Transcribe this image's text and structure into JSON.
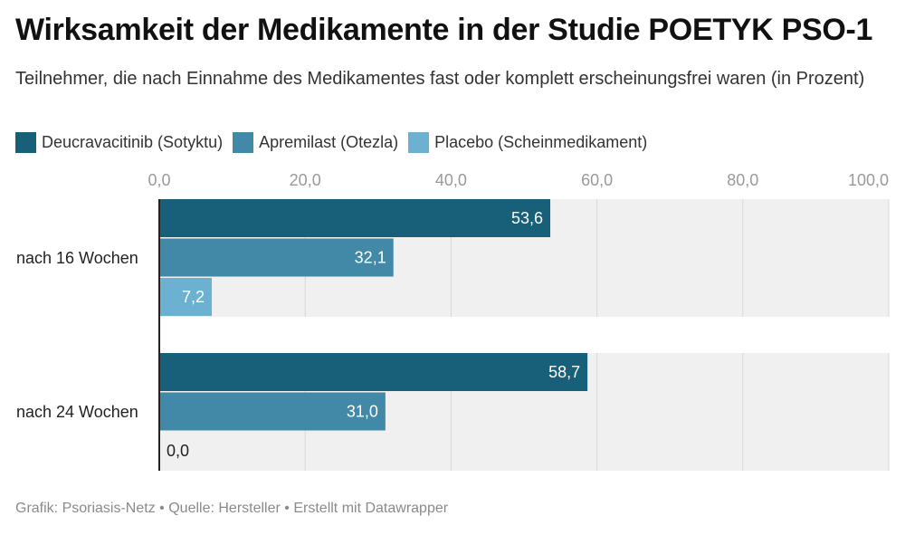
{
  "title": "Wirksamkeit der Medikamente in der Studie POETYK PSO-1",
  "subtitle": "Teilnehmer, die nach Einnahme des Medikamentes fast oder komplett erscheinungsfrei waren (in Prozent)",
  "footer": {
    "grafik": "Grafik: Psoriasis-Netz",
    "separator": "•",
    "quelle": "Quelle: Hersteller",
    "erstellt": "Erstellt mit Datawrapper"
  },
  "chart_data": {
    "type": "bar",
    "orientation": "horizontal",
    "title": "Wirksamkeit der Medikamente in der Studie POETYK PSO-1",
    "subtitle": "Teilnehmer, die nach Einnahme des Medikamentes fast oder komplett erscheinungsfrei waren (in Prozent)",
    "categories": [
      "nach 16 Wochen",
      "nach 24 Wochen"
    ],
    "series": [
      {
        "name": "Deucravacitinib (Sotyktu)",
        "color": "#18607a",
        "values": [
          53.6,
          58.7
        ],
        "labels": [
          "53,6",
          "58,7"
        ]
      },
      {
        "name": "Apremilast (Otezla)",
        "color": "#4189a6",
        "values": [
          32.1,
          31.0
        ],
        "labels": [
          "32,1",
          "31,0"
        ]
      },
      {
        "name": "Placebo (Scheinmedikament)",
        "color": "#6cb2d0",
        "values": [
          7.2,
          0.0
        ],
        "labels": [
          "7,2",
          "0,0"
        ]
      }
    ],
    "xlim": [
      0,
      100
    ],
    "ticks": [
      0,
      20,
      40,
      60,
      80,
      100
    ],
    "tick_labels": [
      "0,0",
      "20,0",
      "40,0",
      "60,0",
      "80,0",
      "100,0"
    ],
    "grid": true,
    "legend": "top-left"
  }
}
